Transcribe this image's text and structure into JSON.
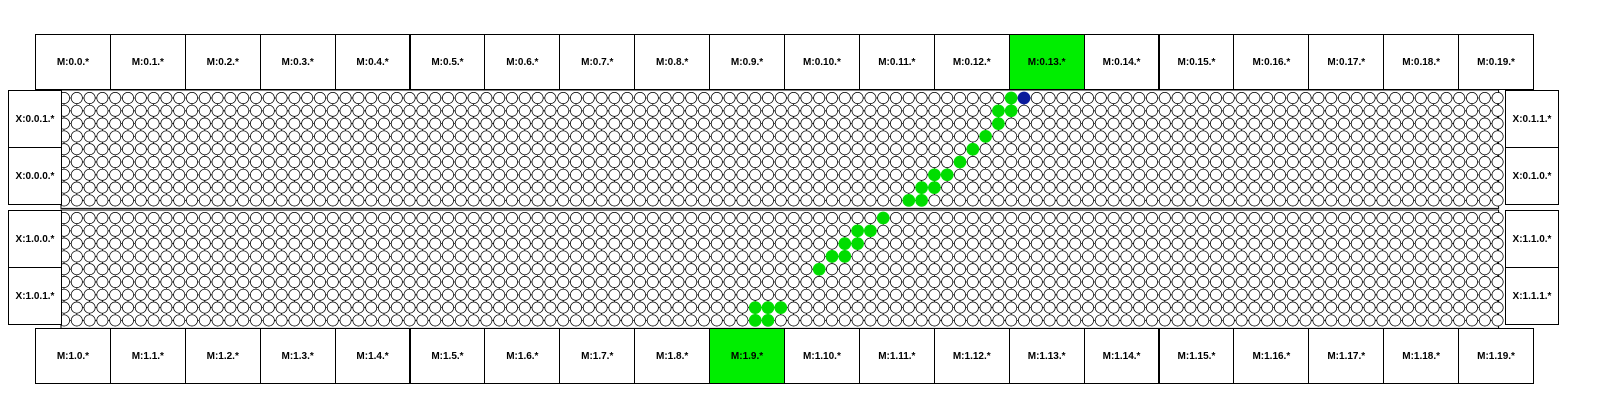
{
  "diagram": {
    "top_modules": [
      "M:0.0.*",
      "M:0.1.*",
      "M:0.2.*",
      "M:0.3.*",
      "M:0.4.*",
      "M:0.5.*",
      "M:0.6.*",
      "M:0.7.*",
      "M:0.8.*",
      "M:0.9.*",
      "M:0.10.*",
      "M:0.11.*",
      "M:0.12.*",
      "M:0.13.*",
      "M:0.14.*",
      "M:0.15.*",
      "M:0.16.*",
      "M:0.17.*",
      "M:0.18.*",
      "M:0.19.*"
    ],
    "bottom_modules": [
      "M:1.0.*",
      "M:1.1.*",
      "M:1.2.*",
      "M:1.3.*",
      "M:1.4.*",
      "M:1.5.*",
      "M:1.6.*",
      "M:1.7.*",
      "M:1.8.*",
      "M:1.9.*",
      "M:1.10.*",
      "M:1.11.*",
      "M:1.12.*",
      "M:1.13.*",
      "M:1.14.*",
      "M:1.15.*",
      "M:1.16.*",
      "M:1.17.*",
      "M:1.18.*",
      "M:1.19.*"
    ],
    "highlighted_top_module": "M:0.13.*",
    "highlighted_bottom_module": "M:1.9.*",
    "left_labels": [
      "X:0.0.1.*",
      "X:0.0.0.*",
      "X:1.0.0.*",
      "X:1.0.1.*"
    ],
    "right_labels": [
      "X:0.1.1.*",
      "X:0.1.0.*",
      "X:1.1.0.*",
      "X:1.1.1.*"
    ],
    "grid": {
      "columns": 113,
      "rows_per_block": 9,
      "blocks": 2
    },
    "active_nodes": [
      {
        "block": 0,
        "col": 75,
        "row": 0,
        "state": "start"
      },
      {
        "block": 0,
        "col": 74,
        "row": 0,
        "state": "on"
      },
      {
        "block": 0,
        "col": 74,
        "row": 1,
        "state": "on"
      },
      {
        "block": 0,
        "col": 73,
        "row": 1,
        "state": "on"
      },
      {
        "block": 0,
        "col": 73,
        "row": 2,
        "state": "on"
      },
      {
        "block": 0,
        "col": 72,
        "row": 3,
        "state": "on"
      },
      {
        "block": 0,
        "col": 71,
        "row": 4,
        "state": "on"
      },
      {
        "block": 0,
        "col": 70,
        "row": 5,
        "state": "on"
      },
      {
        "block": 0,
        "col": 69,
        "row": 6,
        "state": "on"
      },
      {
        "block": 0,
        "col": 68,
        "row": 6,
        "state": "on"
      },
      {
        "block": 0,
        "col": 68,
        "row": 7,
        "state": "on"
      },
      {
        "block": 0,
        "col": 67,
        "row": 7,
        "state": "on"
      },
      {
        "block": 0,
        "col": 67,
        "row": 8,
        "state": "on"
      },
      {
        "block": 0,
        "col": 66,
        "row": 8,
        "state": "on"
      },
      {
        "block": 1,
        "col": 64,
        "row": 0,
        "state": "on"
      },
      {
        "block": 1,
        "col": 63,
        "row": 1,
        "state": "on"
      },
      {
        "block": 1,
        "col": 62,
        "row": 1,
        "state": "on"
      },
      {
        "block": 1,
        "col": 62,
        "row": 2,
        "state": "on"
      },
      {
        "block": 1,
        "col": 61,
        "row": 2,
        "state": "on"
      },
      {
        "block": 1,
        "col": 61,
        "row": 3,
        "state": "on"
      },
      {
        "block": 1,
        "col": 60,
        "row": 3,
        "state": "on"
      },
      {
        "block": 1,
        "col": 59,
        "row": 4,
        "state": "on"
      },
      {
        "block": 1,
        "col": 56,
        "row": 7,
        "state": "on"
      },
      {
        "block": 1,
        "col": 55,
        "row": 7,
        "state": "on"
      },
      {
        "block": 1,
        "col": 54,
        "row": 7,
        "state": "on"
      },
      {
        "block": 1,
        "col": 54,
        "row": 8,
        "state": "on"
      },
      {
        "block": 1,
        "col": 55,
        "row": 8,
        "state": "on"
      }
    ],
    "colors": {
      "active": "#00dd00",
      "start": "#0a1a9c",
      "highlight": "#00ee00",
      "node": "#ffffff",
      "line": "#000000"
    }
  }
}
